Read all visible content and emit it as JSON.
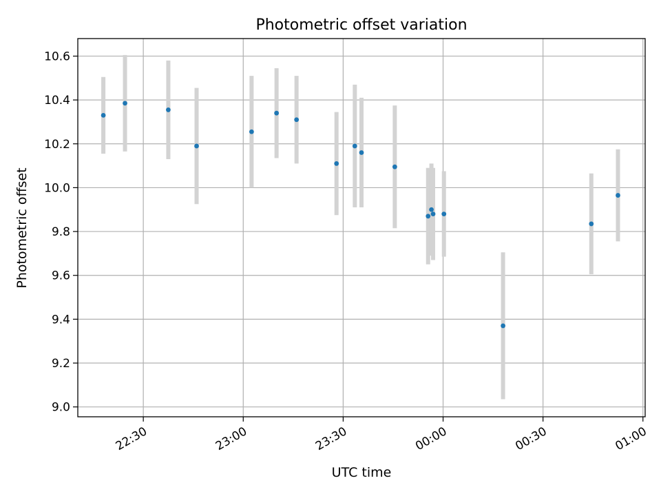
{
  "chart_data": {
    "type": "scatter",
    "title": "Photometric offset variation",
    "xlabel": "UTC time",
    "ylabel": "Photometric offset",
    "x_ticks": [
      "22:30",
      "23:00",
      "23:30",
      "00:00",
      "00:30",
      "01:00"
    ],
    "y_ticks": [
      "9.0",
      "9.2",
      "9.4",
      "9.6",
      "9.8",
      "10.0",
      "10.2",
      "10.4",
      "10.6"
    ],
    "x_unit": "UTC time (HH:MM)",
    "xlim": [
      "22:10:20",
      "01:00:40"
    ],
    "ylim": [
      8.955,
      10.68
    ],
    "grid": true,
    "series": [
      {
        "points": [
          {
            "t": "22:18:00",
            "y": 10.33,
            "err": 0.175
          },
          {
            "t": "22:24:30",
            "y": 10.385,
            "err": 0.22
          },
          {
            "t": "22:37:30",
            "y": 10.355,
            "err": 0.225
          },
          {
            "t": "22:46:00",
            "y": 10.19,
            "err": 0.265
          },
          {
            "t": "23:02:30",
            "y": 10.255,
            "err": 0.255
          },
          {
            "t": "23:10:00",
            "y": 10.34,
            "err": 0.205
          },
          {
            "t": "23:16:00",
            "y": 10.31,
            "err": 0.2
          },
          {
            "t": "23:28:00",
            "y": 10.11,
            "err": 0.235
          },
          {
            "t": "23:33:30",
            "y": 10.19,
            "err": 0.28
          },
          {
            "t": "23:35:30",
            "y": 10.16,
            "err": 0.25
          },
          {
            "t": "23:45:30",
            "y": 10.095,
            "err": 0.28
          },
          {
            "t": "23:55:30",
            "y": 9.87,
            "err": 0.22
          },
          {
            "t": "23:56:30",
            "y": 9.9,
            "err": 0.21
          },
          {
            "t": "23:57:00",
            "y": 9.88,
            "err": 0.21
          },
          {
            "t": "00:00:15",
            "y": 9.88,
            "err": 0.195
          },
          {
            "t": "00:18:00",
            "y": 9.37,
            "err": 0.335
          },
          {
            "t": "00:44:30",
            "y": 9.835,
            "err": 0.23
          },
          {
            "t": "00:52:30",
            "y": 9.965,
            "err": 0.21
          }
        ]
      }
    ]
  },
  "colors": {
    "marker": "#1f77b4",
    "errorbar": "#d3d3d3",
    "grid": "#b0b0b0",
    "axis": "#000000"
  }
}
